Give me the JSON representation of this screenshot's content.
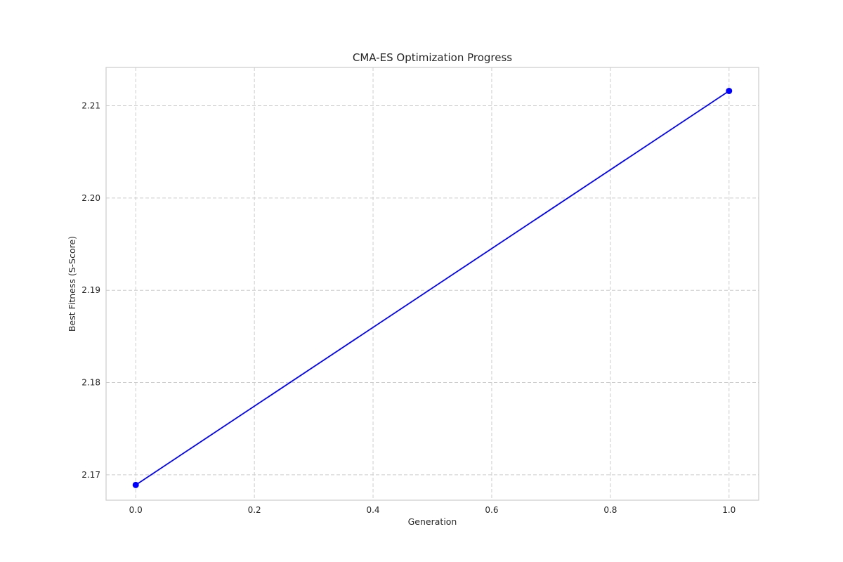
{
  "chart_data": {
    "type": "line",
    "title": "CMA-ES Optimization Progress",
    "xlabel": "Generation",
    "ylabel": "Best Fitness (S-Score)",
    "x": [
      0.0,
      1.0
    ],
    "series": [
      {
        "values": [
          2.1689,
          2.2116
        ],
        "color": "#0000ff",
        "marker": "circle"
      }
    ],
    "xlim": [
      -0.05,
      1.05
    ],
    "ylim": [
      2.16725,
      2.21415
    ],
    "xticks": [
      0.0,
      0.2,
      0.4,
      0.6,
      0.8,
      1.0
    ],
    "xtick_labels": [
      "0.0",
      "0.2",
      "0.4",
      "0.6",
      "0.8",
      "1.0"
    ],
    "yticks": [
      2.17,
      2.18,
      2.19,
      2.2,
      2.21
    ],
    "ytick_labels": [
      "2.17",
      "2.18",
      "2.19",
      "2.20",
      "2.21"
    ],
    "grid": true,
    "legend": "none"
  }
}
